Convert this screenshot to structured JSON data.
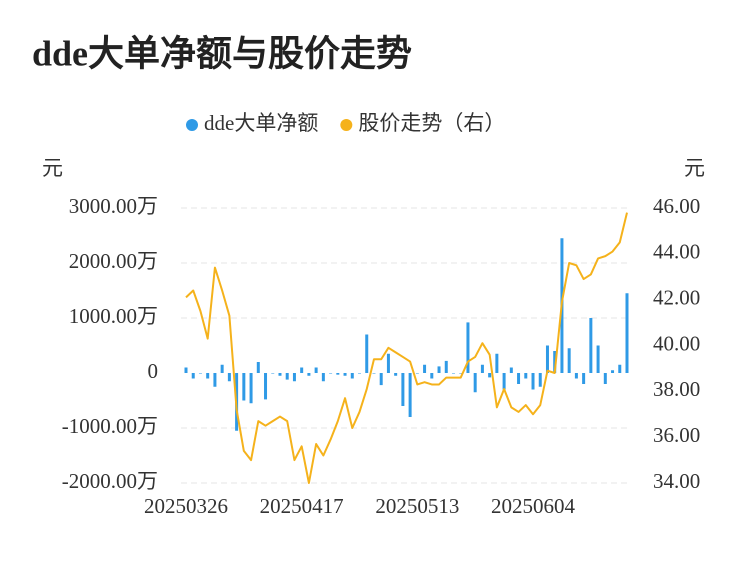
{
  "chart_data": {
    "type": "bar-line",
    "title": "dde大单净额与股价走势",
    "y_label": "元",
    "y2_label": "元",
    "categories": [
      "20250326",
      null,
      null,
      null,
      null,
      null,
      null,
      null,
      null,
      null,
      null,
      null,
      null,
      null,
      null,
      null,
      "20250417",
      null,
      null,
      null,
      null,
      null,
      null,
      null,
      null,
      null,
      null,
      null,
      null,
      null,
      null,
      null,
      "20250513",
      null,
      null,
      null,
      null,
      null,
      null,
      null,
      null,
      null,
      null,
      null,
      null,
      null,
      null,
      null,
      "20250604",
      null,
      null,
      null,
      null,
      null,
      null,
      null,
      null,
      null,
      null,
      null,
      null,
      null
    ],
    "series": [
      {
        "name": "dde大单净额",
        "color": "#2f9ae6",
        "type": "bar",
        "values": [
          100,
          -100,
          0,
          -100,
          -250,
          150,
          -150,
          -1050,
          -500,
          -550,
          200,
          -480,
          0,
          -50,
          -120,
          -150,
          100,
          -50,
          100,
          -150,
          0,
          -30,
          -50,
          -100,
          0,
          700,
          0,
          -220,
          350,
          -50,
          -600,
          -800,
          0,
          150,
          -100,
          120,
          220,
          0,
          0,
          920,
          -350,
          150,
          -80,
          350,
          -300,
          100,
          -200,
          -100,
          -300,
          -250,
          500,
          400,
          2450,
          450,
          -100,
          -200,
          1000,
          500,
          -200,
          50,
          150,
          1450
        ]
      },
      {
        "name": "股价走势（右）",
        "color": "#f5b21b",
        "type": "line",
        "axis": "y2",
        "values": [
          42.1,
          42.4,
          41.5,
          40.3,
          43.4,
          42.4,
          41.3,
          37.2,
          35.4,
          35.0,
          36.7,
          36.5,
          36.7,
          36.9,
          36.7,
          35.0,
          35.6,
          34.0,
          35.7,
          35.2,
          35.9,
          36.7,
          37.7,
          36.4,
          37.1,
          38.1,
          39.4,
          39.4,
          39.9,
          39.7,
          39.5,
          39.3,
          38.3,
          38.4,
          38.3,
          38.3,
          38.6,
          38.6,
          38.6,
          39.3,
          39.5,
          40.1,
          39.6,
          37.3,
          38.1,
          37.3,
          37.1,
          37.4,
          37.0,
          37.4,
          38.9,
          38.8,
          41.9,
          43.6,
          43.5,
          42.9,
          43.1,
          43.8,
          43.9,
          44.1,
          44.5,
          45.8
        ]
      }
    ],
    "ylim": [
      -2000,
      3000
    ],
    "yticks": [
      {
        "value": -2000,
        "label": "-2000.00万"
      },
      {
        "value": -1000,
        "label": "-1000.00万"
      },
      0,
      {
        "value": 1000,
        "label": "1000.00万"
      },
      {
        "value": 2000,
        "label": "2000.00万"
      },
      {
        "value": 3000,
        "label": "3000.00万"
      }
    ],
    "y2lim": [
      34,
      46
    ],
    "y2ticks": [
      {
        "value": 34,
        "label": "34.00"
      },
      {
        "value": 36,
        "label": "36.00"
      },
      {
        "value": 38,
        "label": "38.00"
      },
      {
        "value": 40,
        "label": "40.00"
      },
      {
        "value": 42,
        "label": "42.00"
      },
      {
        "value": 44,
        "label": "44.00"
      },
      {
        "value": 46,
        "label": "46.00"
      }
    ],
    "grid": true,
    "legend": "top"
  }
}
